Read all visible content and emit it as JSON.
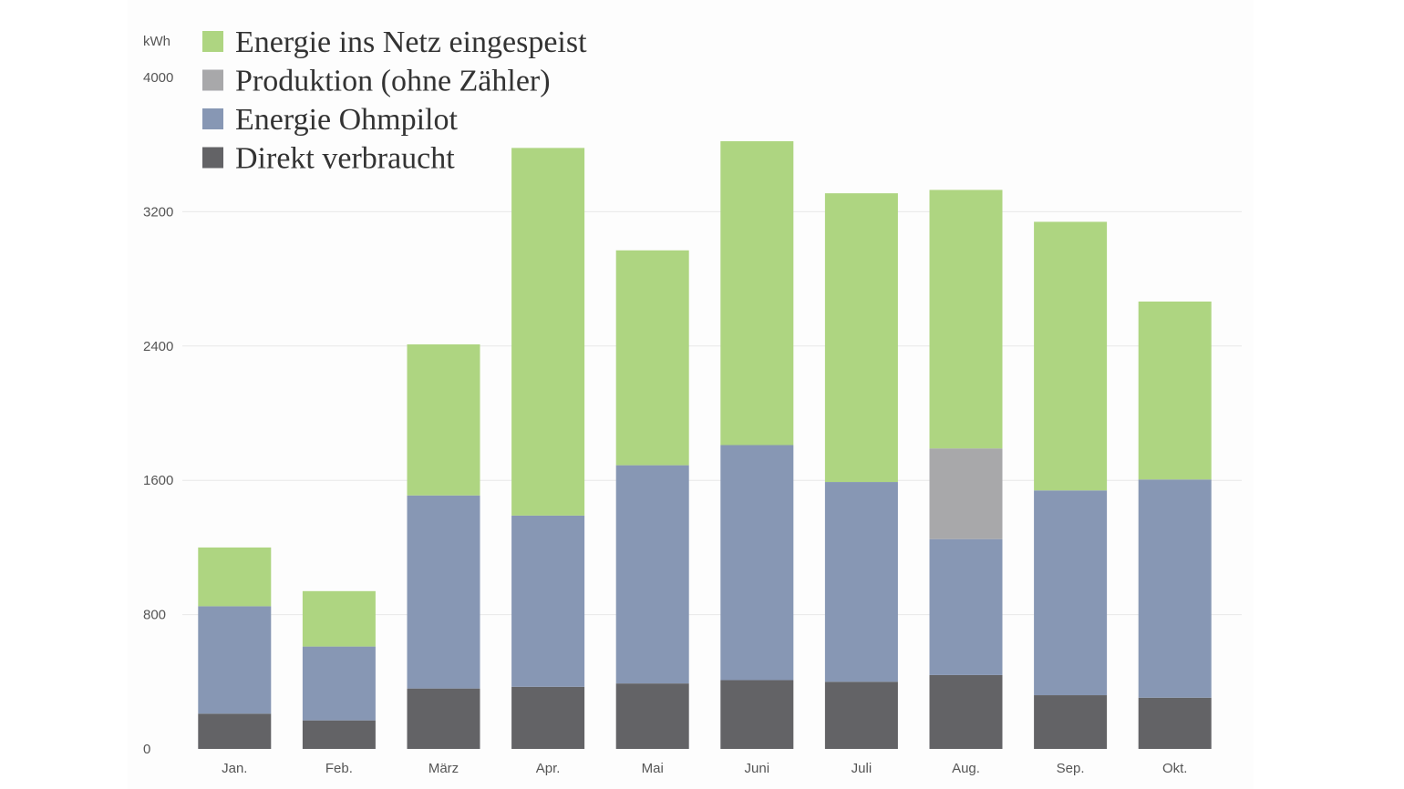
{
  "chart_data": {
    "type": "bar",
    "stacked": true,
    "y_unit": "kWh",
    "ylim": [
      0,
      4000
    ],
    "yticks": [
      "0",
      "800",
      "1600",
      "2400",
      "3200",
      "4000"
    ],
    "grid": true,
    "legend_position": "top-left",
    "categories": [
      "Jan.",
      "Feb.",
      "März",
      "Apr.",
      "Mai",
      "Juni",
      "Juli",
      "Aug.",
      "Sep.",
      "Okt."
    ],
    "series": [
      {
        "name": "Direkt verbraucht",
        "color": "#636366",
        "values": [
          210,
          170,
          360,
          370,
          390,
          410,
          400,
          440,
          320,
          305
        ]
      },
      {
        "name": "Energie Ohmpilot",
        "color": "#8797b4",
        "values": [
          640,
          440,
          1150,
          1020,
          1300,
          1400,
          1190,
          810,
          1220,
          1300
        ]
      },
      {
        "name": "Produktion (ohne Zähler)",
        "color": "#a8a8aa",
        "values": [
          0,
          0,
          0,
          0,
          0,
          0,
          0,
          540,
          0,
          0
        ]
      },
      {
        "name": "Energie ins Netz eingespeist",
        "color": "#aed581",
        "values": [
          350,
          330,
          900,
          2190,
          1280,
          1810,
          1720,
          1540,
          1600,
          1060
        ]
      }
    ],
    "legend_order": [
      "Energie ins Netz eingespeist",
      "Produktion (ohne Zähler)",
      "Energie Ohmpilot",
      "Direkt verbraucht"
    ]
  }
}
